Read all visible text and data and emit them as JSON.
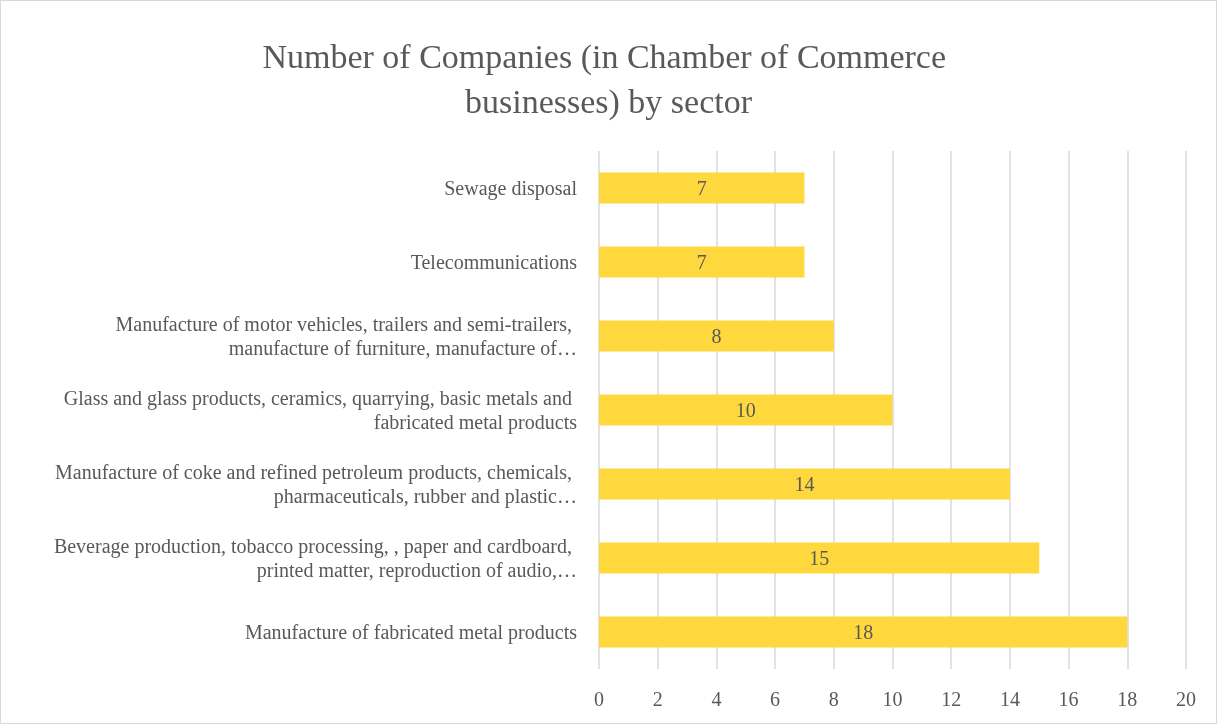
{
  "chart_data": {
    "type": "bar",
    "orientation": "horizontal",
    "title": "Number of Companies (in Chamber of Commerce businesses) by sector",
    "categories": [
      "Sewage disposal",
      "Telecommunications",
      "Manufacture of motor vehicles, trailers and semi-trailers, manufacture of furniture, manufacture of…",
      "Glass and glass products, ceramics, quarrying, basic metals and fabricated metal products",
      "Manufacture of coke and refined petroleum products, chemicals, pharmaceuticals, rubber and plastic…",
      "Beverage production, tobacco processing, , paper and cardboard, printed matter, reproduction of audio,…",
      "Manufacture of fabricated metal products"
    ],
    "values": [
      7,
      7,
      8,
      10,
      14,
      15,
      18
    ],
    "color": "#ffd83d",
    "xlim": [
      0,
      20
    ],
    "xticks": [
      0,
      2,
      4,
      6,
      8,
      10,
      12,
      14,
      16,
      18,
      20
    ],
    "grid": "x",
    "data_labels": true
  }
}
